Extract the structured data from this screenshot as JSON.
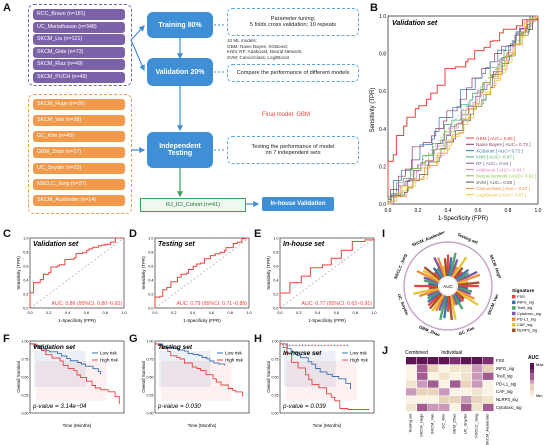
{
  "panels": {
    "a": "A",
    "b": "B",
    "c": "C",
    "d": "D",
    "e": "E",
    "f": "F",
    "g": "G",
    "h": "H",
    "i": "I",
    "j": "J"
  },
  "flow": {
    "training_cohorts": [
      "RCC_Braun (n=181)",
      "UC_Mariathasan (n=348)",
      "SKCM_Liu (n=121)",
      "SKCM_Gide (n=73)",
      "SKCM_Riaz (n=49)",
      "SKCM_PUCH (n=49)"
    ],
    "testing_cohorts": [
      "SKCM_Hugo (n=26)",
      "SKCM_Van (n=38)",
      "GC_Kim (n=45)",
      "GBM_Zhao (n=17)",
      "UC_Snyder (n=25)",
      "NSCLC_Jung (n=27)",
      "SKCM_Auslander (n=14)"
    ],
    "training_label": "Training 80%",
    "validation_label": "Validation 20%",
    "testing_label": "Independent Testing",
    "param_note_1": "Parameter tuning:",
    "param_note_2": "5 folds cross validation; 10 repeats",
    "models_note_1": "10 ML models:",
    "models_note_2": "GBM; Naive Bayes; XGBoost;",
    "models_note_3": "KNN; RF; Adaboost; Neural Network;",
    "models_note_4": "SVM; Cancerclass; LogitBoost",
    "compare_note": "Compare the performance of different models",
    "final_model": "Final model: GBM",
    "testing_note_1": "Testing the performance of model",
    "testing_note_2": "on 7 independent sets",
    "cohort_box": "RJ_ICI_Cohort (n=41)",
    "inhouse_box": "In-house Validation"
  },
  "roc_b": {
    "title": "Validation set",
    "xlabel": "1-Specificity (FPR)",
    "ylabel": "Sensitivity (TPR)",
    "legend": [
      {
        "name": "GBM [ AUC= 0.86 ]",
        "color": "#e8423f"
      },
      {
        "name": "Naive Bayes [ AUC= 0.73 ]",
        "color": "#8e3a5a"
      },
      {
        "name": "XGBoost [ AUC= 0.72 ]",
        "color": "#3b6fb0"
      },
      {
        "name": "KNN [ AUC= 0.67 ]",
        "color": "#4aa56b"
      },
      {
        "name": "RF [ AUC= 0.64 ]",
        "color": "#7e57a3"
      },
      {
        "name": "Adaboost [ AUC= 0.64 ]",
        "color": "#e67fbd"
      },
      {
        "name": "Neural Network [ AUC= 0.62 ]",
        "color": "#8cc63e"
      },
      {
        "name": "SVM [ AUC= 0.59 ]",
        "color": "#555555"
      },
      {
        "name": "Cancerclass [ AUC= 0.57 ]",
        "color": "#f08c32"
      },
      {
        "name": "LogitBoost [ AUC= 0.57 ]",
        "color": "#e9c23a"
      }
    ],
    "ticks": [
      "0.0",
      "0.2",
      "0.4",
      "0.6",
      "0.8",
      "1.0"
    ]
  },
  "roc_c": {
    "title": "Validation set",
    "auc": "AUC: 0.86 (95%CI: 0.80~0.92)",
    "xlabel": "1-Specificity (FPR)",
    "ylabel": "Sensitivity (TPR)"
  },
  "roc_d": {
    "title": "Testing set",
    "auc": "AUC: 0.79 (95%CI: 0.71~0.86)",
    "xlabel": "1-Specificity (FPR)",
    "ylabel": "Sensitivity (TPR)"
  },
  "roc_e": {
    "title": "In-house set",
    "auc": "AUC: 0.77 (95%CI: 0.63~0.91)",
    "xlabel": "1-Specificity (FPR)",
    "ylabel": "Sensitivity (TPR)"
  },
  "km_f": {
    "title": "Validation set",
    "pval": "p-value = 3.14e−04",
    "xlabel": "Time (Months)",
    "ylabel": "Overall Survival",
    "low": "Low risk",
    "high": "High risk"
  },
  "km_g": {
    "title": "Testing set",
    "pval": "p-value = 0.030",
    "xlabel": "Time (Months)",
    "ylabel": "Overall Survival",
    "low": "Low risk",
    "high": "High risk"
  },
  "km_h": {
    "title": "In-house set",
    "pval": "p-value = 0.039",
    "xlabel": "Time (Months)",
    "ylabel": "Overall Survival",
    "low": "Low risk",
    "high": "High risk"
  },
  "circ_i": {
    "center": "AUC",
    "sets": [
      "Testing set",
      "SKCM_Hugo",
      "SKCM_Van",
      "GC_Kim",
      "GBM_Zhao",
      "UC_Snyder",
      "NSCLC_Jung",
      "SKCM_Auslander"
    ],
    "legend_title": "Signature",
    "signatures": [
      {
        "name": "FSS",
        "color": "#e8423f"
      },
      {
        "name": "INFG_sig",
        "color": "#3b6fb0"
      },
      {
        "name": "Tcell_sig",
        "color": "#4aa56b"
      },
      {
        "name": "Cytotoxic_sig",
        "color": "#7e57a3"
      },
      {
        "name": "PD-L1_sig",
        "color": "#f08c32"
      },
      {
        "name": "CAF_sig",
        "color": "#e9c23a"
      },
      {
        "name": "NLRP3_sig",
        "color": "#a0522d"
      }
    ]
  },
  "heat_j": {
    "combined": "Combined",
    "individual": "Individual",
    "rows": [
      "FSS",
      "INFG_sig",
      "Tcell_sig",
      "PD-L1_sig",
      "CAF_sig",
      "NLRP3_sig",
      "Cytotoxic_sig"
    ],
    "cols": [
      "Testing set",
      "SKCM_Hugo",
      "SKCM_Van",
      "GC_Kim",
      "GBM_Zhao",
      "UC_Snyder",
      "NSCLC_Jung",
      "SKCM_Auslander"
    ],
    "legend_title": "AUC",
    "max": "Max",
    "min": "Min"
  }
}
